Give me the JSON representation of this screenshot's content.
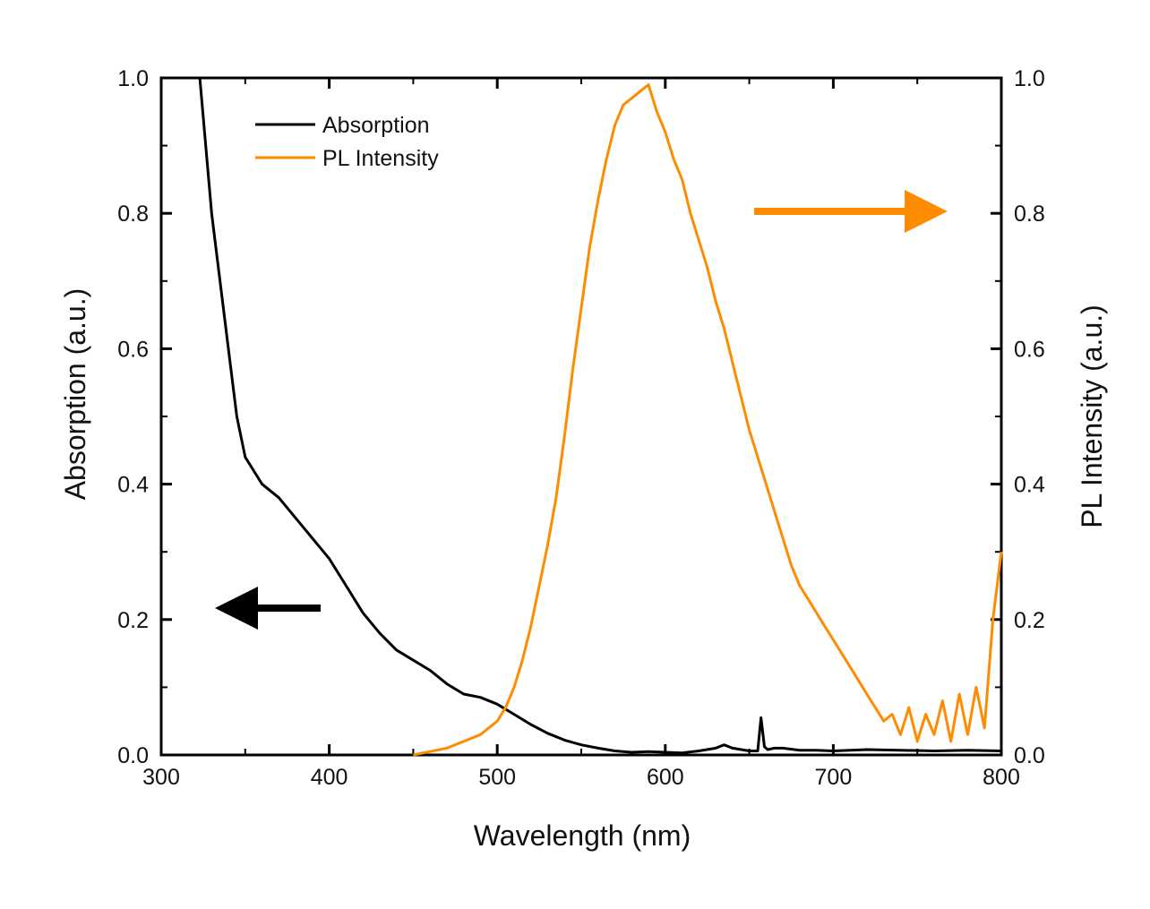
{
  "chart_data": {
    "type": "line",
    "title": "",
    "xlabel": "Wavelength (nm)",
    "ylabel_left": "Absorption (a.u.)",
    "ylabel_right": "PL Intensity (a.u.)",
    "xlim": [
      300,
      800
    ],
    "ylim_left": [
      0.0,
      1.0
    ],
    "ylim_right": [
      0.0,
      1.0
    ],
    "x_ticks": [
      "300",
      "400",
      "500",
      "600",
      "700",
      "800"
    ],
    "y_left_ticks": [
      "0.0",
      "0.2",
      "0.4",
      "0.6",
      "0.8",
      "1.0"
    ],
    "y_right_ticks": [
      "0.0",
      "0.2",
      "0.4",
      "0.6",
      "0.8",
      "1.0"
    ],
    "grid": false,
    "legend_position": "top-left",
    "colors": {
      "absorption": "#000000",
      "pl": "#ff8c00"
    },
    "series": [
      {
        "name": "Absorption",
        "axis": "left",
        "color": "#000000",
        "x": [
          323,
          330,
          340,
          345,
          350,
          355,
          360,
          370,
          380,
          390,
          400,
          410,
          420,
          430,
          440,
          450,
          460,
          470,
          480,
          490,
          500,
          510,
          520,
          530,
          540,
          550,
          560,
          570,
          580,
          590,
          600,
          610,
          620,
          630,
          635,
          640,
          650,
          655,
          657,
          659,
          661,
          665,
          670,
          680,
          690,
          700,
          720,
          740,
          760,
          780,
          800
        ],
        "y": [
          1.0,
          0.8,
          0.6,
          0.5,
          0.44,
          0.42,
          0.4,
          0.38,
          0.35,
          0.32,
          0.29,
          0.25,
          0.21,
          0.18,
          0.155,
          0.14,
          0.125,
          0.105,
          0.09,
          0.085,
          0.075,
          0.06,
          0.045,
          0.032,
          0.022,
          0.015,
          0.01,
          0.006,
          0.004,
          0.005,
          0.004,
          0.003,
          0.006,
          0.01,
          0.015,
          0.01,
          0.006,
          0.006,
          0.055,
          0.012,
          0.008,
          0.01,
          0.01,
          0.007,
          0.007,
          0.006,
          0.008,
          0.007,
          0.006,
          0.007,
          0.006
        ]
      },
      {
        "name": "PL Intensity",
        "axis": "right",
        "color": "#ff8c00",
        "x": [
          450,
          460,
          470,
          480,
          490,
          500,
          505,
          510,
          515,
          520,
          525,
          530,
          535,
          540,
          545,
          550,
          555,
          560,
          565,
          570,
          575,
          580,
          585,
          590,
          595,
          600,
          605,
          610,
          615,
          620,
          625,
          630,
          635,
          640,
          645,
          650,
          655,
          660,
          665,
          670,
          675,
          680,
          685,
          690,
          695,
          700,
          705,
          710,
          715,
          720,
          725,
          730,
          735,
          740,
          745,
          750,
          755,
          760,
          765,
          770,
          775,
          780,
          785,
          790,
          795,
          800
        ],
        "y": [
          0.0,
          0.005,
          0.01,
          0.02,
          0.03,
          0.05,
          0.07,
          0.1,
          0.14,
          0.19,
          0.25,
          0.31,
          0.38,
          0.47,
          0.57,
          0.66,
          0.75,
          0.82,
          0.88,
          0.93,
          0.96,
          0.97,
          0.98,
          0.99,
          0.95,
          0.92,
          0.88,
          0.85,
          0.8,
          0.76,
          0.72,
          0.67,
          0.63,
          0.58,
          0.53,
          0.48,
          0.44,
          0.4,
          0.36,
          0.32,
          0.28,
          0.25,
          0.23,
          0.21,
          0.19,
          0.17,
          0.15,
          0.13,
          0.11,
          0.09,
          0.07,
          0.05,
          0.06,
          0.03,
          0.07,
          0.02,
          0.06,
          0.03,
          0.08,
          0.02,
          0.09,
          0.03,
          0.1,
          0.04,
          0.2,
          0.3
        ]
      }
    ]
  }
}
